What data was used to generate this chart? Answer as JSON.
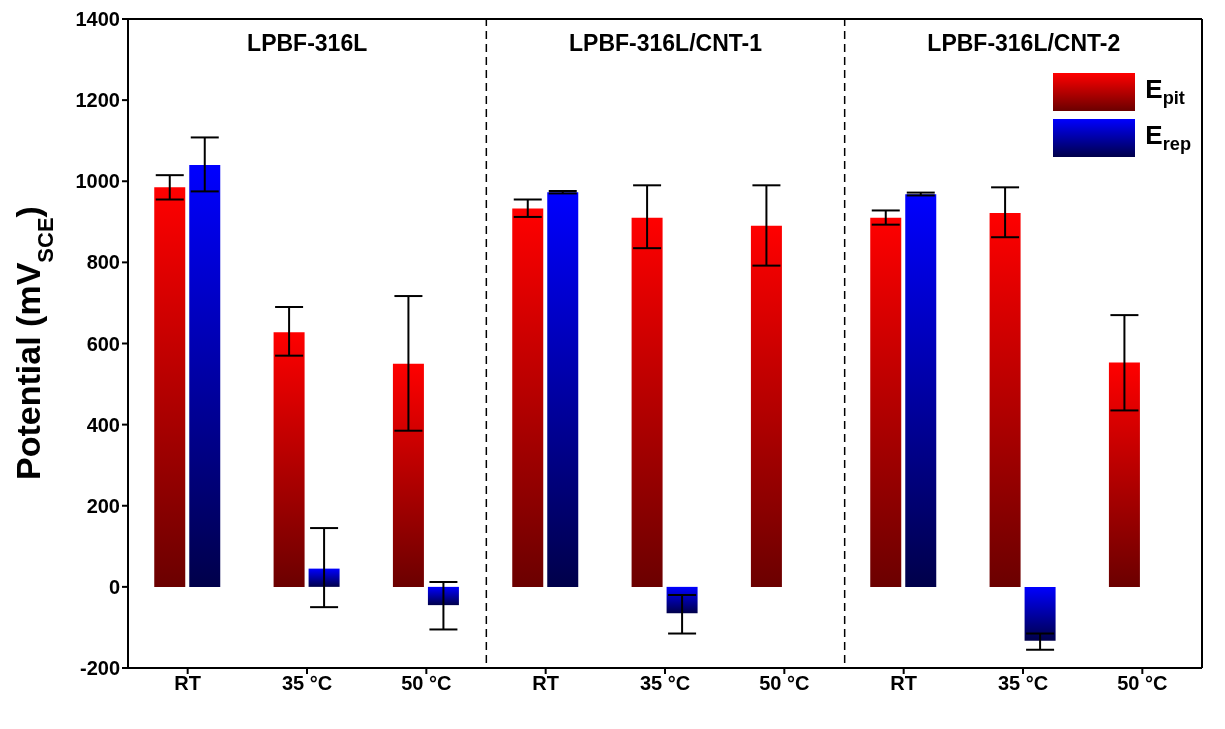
{
  "chart_data": {
    "type": "bar",
    "ylabel": "Potential (mV$_{SCE}$)",
    "categories": [
      "RT",
      "35 °C",
      "50 °C",
      "RT",
      "35 °C",
      "50 °C",
      "RT",
      "35 °C",
      "50 °C"
    ],
    "annotations": [
      "LPBF-316L",
      "LPBF-316L/CNT-1",
      "LPBF-316L/CNT-2"
    ],
    "series": [
      {
        "name": "E$_{pit}$",
        "color": "#ff0000",
        "values": [
          985,
          628,
          550,
          933,
          910,
          890,
          910,
          922,
          553
        ],
        "errors": [
          [
            955,
            1015
          ],
          [
            570,
            690
          ],
          [
            385,
            717
          ],
          [
            912,
            955
          ],
          [
            835,
            990
          ],
          [
            792,
            990
          ],
          [
            893,
            928
          ],
          [
            862,
            985
          ],
          [
            435,
            670
          ]
        ]
      },
      {
        "name": "E$_{rep}$",
        "color": "#0000ff",
        "values": [
          1040,
          45,
          -45,
          973,
          -65,
          null,
          968,
          -133,
          null
        ],
        "errors": [
          [
            975,
            1108
          ],
          [
            -50,
            145
          ],
          [
            -105,
            12
          ],
          [
            970,
            976
          ],
          [
            -115,
            -20
          ],
          null,
          [
            965,
            972
          ],
          [
            -155,
            -115
          ],
          null
        ]
      }
    ],
    "ylim": [
      -200,
      1400
    ],
    "yticks": [
      -200,
      0,
      200,
      400,
      600,
      800,
      1000,
      1200,
      1400
    ],
    "grid": false,
    "legend": "top right"
  }
}
